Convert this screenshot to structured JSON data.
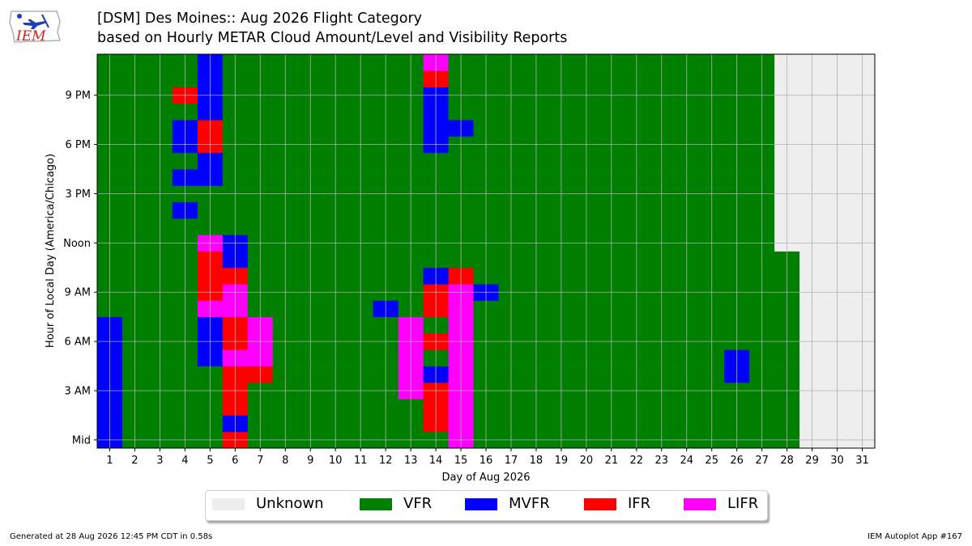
{
  "logo": {
    "text": "IEM",
    "colors": {
      "outline": "#b0b0b0",
      "plane": "#1f3fb5",
      "text": "#cc2222"
    }
  },
  "header": {
    "title_line1": "[DSM] Des Moines:: Aug 2026 Flight Category",
    "title_line2": "based on Hourly METAR Cloud Amount/Level and Visibility Reports"
  },
  "footer": {
    "left": "Generated at 28 Aug 2026 12:45 PM CDT in 0.58s",
    "right": "IEM Autoplot App #167"
  },
  "legend": {
    "items": [
      {
        "label": "Unknown",
        "color": "#eeeeee"
      },
      {
        "label": "VFR",
        "color": "#008000"
      },
      {
        "label": "MVFR",
        "color": "#0000ff"
      },
      {
        "label": "IFR",
        "color": "#ff0000"
      },
      {
        "label": "LIFR",
        "color": "#ff00ff"
      }
    ]
  },
  "chart_data": {
    "type": "heatmap",
    "xlabel": "Day of Aug 2026",
    "ylabel": "Hour of Local Day (America/Chicago)",
    "x_ticks": [
      "1",
      "2",
      "3",
      "4",
      "5",
      "6",
      "7",
      "8",
      "9",
      "10",
      "11",
      "12",
      "13",
      "14",
      "15",
      "16",
      "17",
      "18",
      "19",
      "20",
      "21",
      "22",
      "23",
      "24",
      "25",
      "26",
      "27",
      "28",
      "29",
      "30",
      "31"
    ],
    "y_ticks": [
      {
        "hour": 0,
        "label": "Mid"
      },
      {
        "hour": 3,
        "label": "3 AM"
      },
      {
        "hour": 6,
        "label": "6 AM"
      },
      {
        "hour": 9,
        "label": "9 AM"
      },
      {
        "hour": 12,
        "label": "Noon"
      },
      {
        "hour": 15,
        "label": "3 PM"
      },
      {
        "hour": 18,
        "label": "6 PM"
      },
      {
        "hour": 21,
        "label": "9 PM"
      }
    ],
    "x_range": [
      1,
      31
    ],
    "y_range": [
      0,
      23
    ],
    "grid": true,
    "categories": [
      "Unknown",
      "VFR",
      "MVFR",
      "IFR",
      "LIFR"
    ],
    "default_category": "VFR",
    "cells": [
      {
        "day": 1,
        "hours": [
          0,
          1,
          2,
          3,
          4,
          5,
          6,
          7
        ],
        "category": "MVFR"
      },
      {
        "day": 4,
        "hours": [
          14
        ],
        "category": "MVFR"
      },
      {
        "day": 4,
        "hours": [
          16,
          18,
          19
        ],
        "category": "MVFR"
      },
      {
        "day": 4,
        "hours": [
          21
        ],
        "category": "IFR"
      },
      {
        "day": 5,
        "hours": [
          5,
          6,
          7
        ],
        "category": "MVFR"
      },
      {
        "day": 5,
        "hours": [
          8
        ],
        "category": "LIFR"
      },
      {
        "day": 5,
        "hours": [
          9,
          10,
          11
        ],
        "category": "IFR"
      },
      {
        "day": 5,
        "hours": [
          12
        ],
        "category": "LIFR"
      },
      {
        "day": 5,
        "hours": [
          16,
          17
        ],
        "category": "MVFR"
      },
      {
        "day": 5,
        "hours": [
          18,
          19
        ],
        "category": "IFR"
      },
      {
        "day": 5,
        "hours": [
          20,
          21,
          22,
          23
        ],
        "category": "MVFR"
      },
      {
        "day": 6,
        "hours": [
          0,
          2,
          3,
          4
        ],
        "category": "IFR"
      },
      {
        "day": 6,
        "hours": [
          1
        ],
        "category": "MVFR"
      },
      {
        "day": 6,
        "hours": [
          5,
          8,
          9
        ],
        "category": "LIFR"
      },
      {
        "day": 6,
        "hours": [
          6,
          7,
          10
        ],
        "category": "IFR"
      },
      {
        "day": 6,
        "hours": [
          11,
          12
        ],
        "category": "MVFR"
      },
      {
        "day": 7,
        "hours": [
          4
        ],
        "category": "IFR"
      },
      {
        "day": 7,
        "hours": [
          5,
          6,
          7
        ],
        "category": "LIFR"
      },
      {
        "day": 12,
        "hours": [
          8
        ],
        "category": "MVFR"
      },
      {
        "day": 13,
        "hours": [
          3,
          4,
          5,
          6,
          7
        ],
        "category": "LIFR"
      },
      {
        "day": 14,
        "hours": [
          1,
          2,
          3,
          6,
          8,
          9,
          22
        ],
        "category": "IFR"
      },
      {
        "day": 14,
        "hours": [
          4,
          10,
          18,
          19,
          20,
          21
        ],
        "category": "MVFR"
      },
      {
        "day": 14,
        "hours": [
          23
        ],
        "category": "LIFR"
      },
      {
        "day": 15,
        "hours": [
          0,
          1,
          2,
          3,
          4,
          5,
          6,
          7,
          8,
          9
        ],
        "category": "LIFR"
      },
      {
        "day": 15,
        "hours": [
          10
        ],
        "category": "IFR"
      },
      {
        "day": 15,
        "hours": [
          19
        ],
        "category": "MVFR"
      },
      {
        "day": 16,
        "hours": [
          9
        ],
        "category": "MVFR"
      },
      {
        "day": 26,
        "hours": [
          4,
          5
        ],
        "category": "MVFR"
      },
      {
        "day": 28,
        "hours": [
          12,
          13,
          14,
          15,
          16,
          17,
          18,
          19,
          20,
          21,
          22,
          23
        ],
        "category": "Unknown"
      },
      {
        "day": 29,
        "hours": [
          0,
          1,
          2,
          3,
          4,
          5,
          6,
          7,
          8,
          9,
          10,
          11,
          12,
          13,
          14,
          15,
          16,
          17,
          18,
          19,
          20,
          21,
          22,
          23
        ],
        "category": "Unknown"
      },
      {
        "day": 30,
        "hours": [
          0,
          1,
          2,
          3,
          4,
          5,
          6,
          7,
          8,
          9,
          10,
          11,
          12,
          13,
          14,
          15,
          16,
          17,
          18,
          19,
          20,
          21,
          22,
          23
        ],
        "category": "Unknown"
      },
      {
        "day": 31,
        "hours": [
          0,
          1,
          2,
          3,
          4,
          5,
          6,
          7,
          8,
          9,
          10,
          11,
          12,
          13,
          14,
          15,
          16,
          17,
          18,
          19,
          20,
          21,
          22,
          23
        ],
        "category": "Unknown"
      }
    ]
  }
}
